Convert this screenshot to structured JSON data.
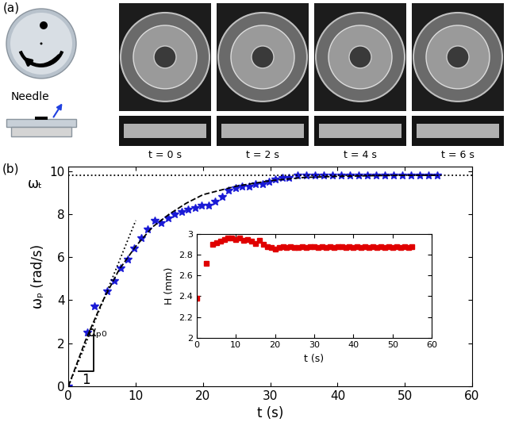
{
  "panel_a": {
    "label": "(a)",
    "needle_label": "Needle",
    "frame_labels": [
      "t = 0 s",
      "t = 2 s",
      "t = 4 s",
      "t = 6 s"
    ]
  },
  "chart_data": [
    {
      "type": "scatter",
      "panel_label": "(b)",
      "x_label": "t (s)",
      "y_label": "ωₚ (rad/s)",
      "xlim": [
        0,
        60
      ],
      "xticks": [
        0,
        10,
        20,
        30,
        40,
        50,
        60
      ],
      "ylim": [
        0,
        10.2
      ],
      "yticks": [
        0,
        2,
        4,
        6,
        8,
        10
      ],
      "series": [
        {
          "type": "scatter",
          "color": "#1a1ad6",
          "marker": "star",
          "line_style": "none",
          "x": [
            0,
            2.8,
            3.8,
            5.8,
            6.8,
            7.8,
            8.8,
            9.8,
            10.8,
            11.8,
            12.8,
            13.8,
            14.8,
            15.8,
            16.8,
            17.8,
            18.8,
            19.8,
            20.8,
            21.8,
            22.8,
            23.8,
            24.8,
            25.8,
            26.8,
            27.8,
            28.8,
            29.8,
            30.8,
            31.8,
            32.8,
            34.0,
            35.3,
            36.6,
            37.9,
            39.2,
            40.5,
            41.8,
            43.1,
            44.4,
            45.7,
            47.0,
            48.3,
            49.6,
            50.9,
            52.2,
            53.5,
            54.8
          ],
          "values": [
            0,
            2.5,
            3.7,
            4.4,
            4.9,
            5.5,
            5.9,
            6.4,
            6.9,
            7.3,
            7.7,
            7.6,
            7.8,
            8.0,
            8.1,
            8.2,
            8.3,
            8.4,
            8.4,
            8.6,
            8.8,
            9.1,
            9.2,
            9.3,
            9.3,
            9.4,
            9.4,
            9.5,
            9.6,
            9.7,
            9.7,
            9.8,
            9.8,
            9.8,
            9.8,
            9.8,
            9.8,
            9.8,
            9.8,
            9.8,
            9.8,
            9.8,
            9.8,
            9.8,
            9.8,
            9.8,
            9.8,
            9.8
          ]
        },
        {
          "type": "line",
          "color": "#000000",
          "marker": "none",
          "line_style": "dashed",
          "x": [
            0,
            2.5,
            5,
            7.5,
            10,
            12.5,
            15,
            17.5,
            20,
            25,
            30,
            35,
            40,
            45,
            50,
            55
          ],
          "values": [
            0,
            2.1,
            3.9,
            5.4,
            6.5,
            7.4,
            8.0,
            8.5,
            8.9,
            9.3,
            9.55,
            9.7,
            9.75,
            9.78,
            9.8,
            9.8
          ]
        },
        {
          "type": "line",
          "color": "#000000",
          "marker": "none",
          "line_style": "dotted",
          "x": [
            0,
            10
          ],
          "values": [
            0,
            7.7
          ]
        },
        {
          "type": "line",
          "color": "#000000",
          "marker": "none",
          "line_style": "dotted",
          "x": [
            0,
            60
          ],
          "values": [
            9.8,
            9.8
          ]
        },
        {
          "type": "line",
          "color": "#000000",
          "marker": "none",
          "line_style": "solid",
          "x": [
            1.5,
            3.7,
            3.7
          ],
          "values": [
            0.7,
            0.7,
            2.4
          ]
        }
      ],
      "annotations": [
        {
          "text": "ωₜ",
          "x": -5.0,
          "y": 9.4
        },
        {
          "text": "1",
          "x": 2.6,
          "y": 0.3
        },
        {
          "text": "αₚ₀",
          "x": 4.3,
          "y": 2.5
        }
      ]
    },
    {
      "type": "scatter",
      "x_label": "t (s)",
      "y_label": "H (mm)",
      "xlim": [
        0,
        60
      ],
      "xticks": [
        0,
        10,
        20,
        30,
        40,
        50,
        60
      ],
      "ylim": [
        2,
        3
      ],
      "yticks": [
        2,
        2.2,
        2.4,
        2.6,
        2.8,
        3
      ],
      "series": [
        {
          "type": "scatter",
          "color": "#e00000",
          "marker": "square",
          "line_style": "none",
          "x": [
            0,
            2.5,
            4,
            5,
            6,
            7,
            8,
            9,
            10,
            11,
            12,
            13,
            14,
            15,
            16,
            17,
            18,
            19,
            20,
            21,
            22,
            23,
            24,
            25,
            26,
            27,
            28,
            29,
            30,
            31,
            32,
            33,
            34,
            35,
            36,
            37,
            38,
            39,
            40,
            41,
            42,
            43,
            44,
            45,
            46,
            47,
            48,
            49,
            50,
            51,
            52,
            53,
            54,
            55
          ],
          "values": [
            2.38,
            2.72,
            2.9,
            2.92,
            2.93,
            2.95,
            2.96,
            2.96,
            2.95,
            2.96,
            2.94,
            2.95,
            2.93,
            2.91,
            2.94,
            2.9,
            2.88,
            2.87,
            2.86,
            2.87,
            2.88,
            2.87,
            2.88,
            2.87,
            2.87,
            2.88,
            2.87,
            2.88,
            2.88,
            2.87,
            2.88,
            2.87,
            2.88,
            2.87,
            2.88,
            2.88,
            2.87,
            2.88,
            2.87,
            2.88,
            2.87,
            2.88,
            2.87,
            2.88,
            2.87,
            2.88,
            2.87,
            2.88,
            2.87,
            2.88,
            2.87,
            2.88,
            2.87,
            2.88
          ]
        }
      ]
    }
  ]
}
